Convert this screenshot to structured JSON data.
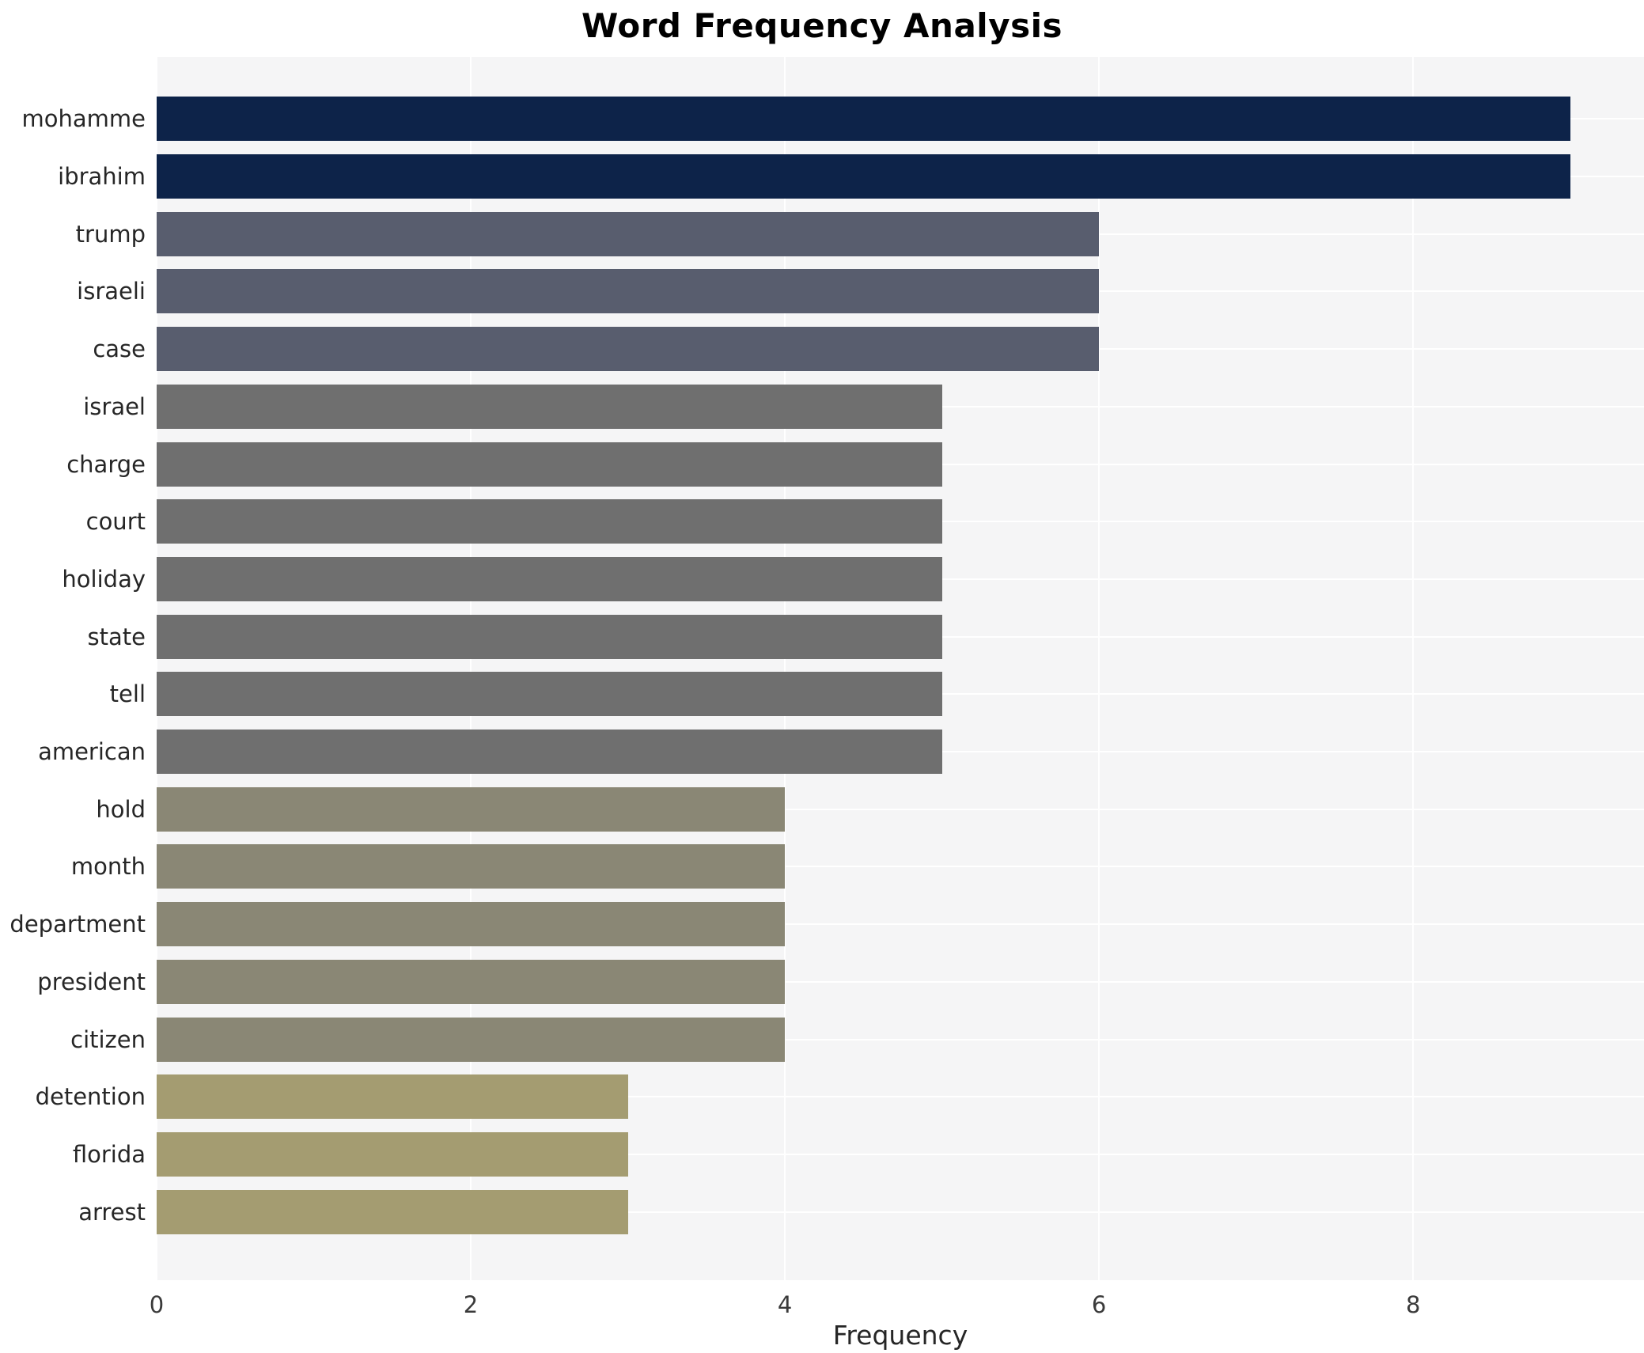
{
  "chart_data": {
    "type": "bar",
    "orientation": "horizontal",
    "title": "Word Frequency Analysis",
    "xlabel": "Frequency",
    "ylabel": "",
    "categories": [
      "mohamme",
      "ibrahim",
      "trump",
      "israeli",
      "case",
      "israel",
      "charge",
      "court",
      "holiday",
      "state",
      "tell",
      "american",
      "hold",
      "month",
      "department",
      "president",
      "citizen",
      "detention",
      "florida",
      "arrest"
    ],
    "values": [
      9,
      9,
      6,
      6,
      6,
      5,
      5,
      5,
      5,
      5,
      5,
      5,
      4,
      4,
      4,
      4,
      4,
      3,
      3,
      3
    ],
    "x_ticks": [
      0,
      2,
      4,
      6,
      8
    ],
    "xlim": [
      0,
      9.47
    ],
    "grid": true,
    "legend": "none",
    "colors": {
      "value_9": "#0d2349",
      "value_6": "#585d6e",
      "value_5": "#6f6f6f",
      "value_4": "#8a8775",
      "value_3": "#a49c71",
      "plot_background": "#f5f5f6",
      "gridline": "#ffffff",
      "label_text": "#262626",
      "tick_text": "#3a3a3a"
    }
  }
}
